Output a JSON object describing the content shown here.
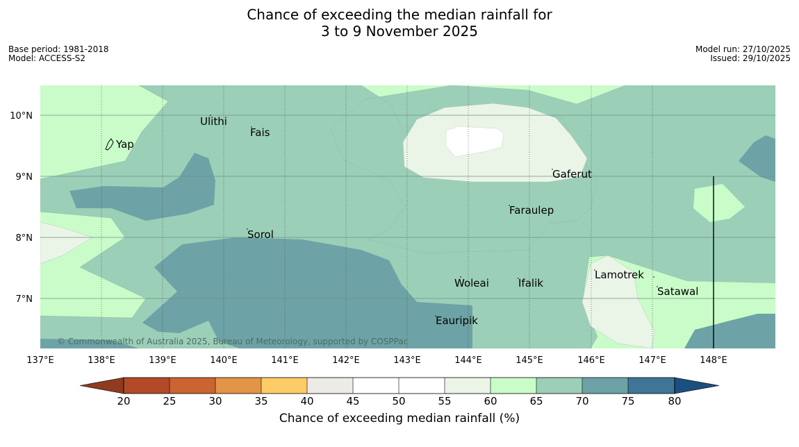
{
  "header": {
    "title_line1": "Chance of exceeding the median rainfall for",
    "title_line2": "3 to 9 November 2025",
    "base_period": "Base period: 1981-2018",
    "model": "Model: ACCESS-S2",
    "model_run": "Model run: 27/10/2025",
    "issued": "Issued: 29/10/2025"
  },
  "map": {
    "copyright": "© Commonwealth of Australia 2025, Bureau of Meteorology, supported by COSPPac",
    "lon_labels": [
      "137°E",
      "138°E",
      "139°E",
      "140°E",
      "141°E",
      "142°E",
      "143°E",
      "144°E",
      "145°E",
      "146°E",
      "147°E",
      "148°E"
    ],
    "lat_labels": [
      "10°N",
      "9°N",
      "8°N",
      "7°N"
    ],
    "places": {
      "yap": "Yap",
      "ulithi": "Ulithi",
      "fais": "Fais",
      "gaferut": "Gaferut",
      "faraulep": "Faraulep",
      "sorol": "Sorol",
      "lamotrek": "Lamotrek",
      "woleai": "Woleai",
      "ifalik": "Ifalik",
      "satawal": "Satawal",
      "eauripik": "Eauripik"
    }
  },
  "legend": {
    "ticks": [
      "20",
      "25",
      "30",
      "35",
      "40",
      "45",
      "50",
      "55",
      "60",
      "65",
      "70",
      "75",
      "80"
    ],
    "colors": {
      "below_20": "#8e3b22",
      "20_25": "#b24a28",
      "25_30": "#cc6332",
      "30_35": "#e39446",
      "35_40": "#fdcc66",
      "40_45": "#ecebe6",
      "45_50": "#ffffff",
      "50_55": "#ffffff",
      "55_60": "#eaf5e8",
      "60_65": "#c9fcc9",
      "65_70": "#9ccfb8",
      "70_75": "#6da3a6",
      "75_80": "#3f7596",
      "above_80": "#1b4f80"
    },
    "label": "Chance of exceeding median rainfall (%)"
  }
}
